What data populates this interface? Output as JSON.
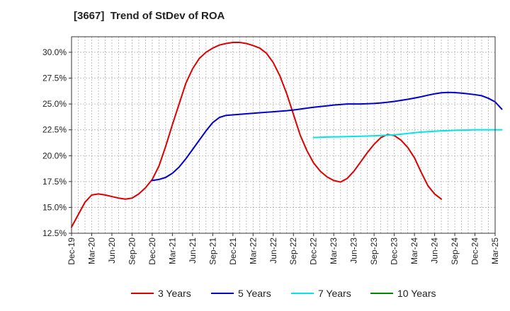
{
  "chart_data": {
    "type": "line",
    "title": "[3667]  Trend of StDev of ROA",
    "xlabel": "",
    "ylabel": "",
    "x_ticks": [
      "Dec-19",
      "Mar-20",
      "Jun-20",
      "Sep-20",
      "Dec-20",
      "Mar-21",
      "Jun-21",
      "Sep-21",
      "Dec-21",
      "Mar-22",
      "Jun-22",
      "Sep-22",
      "Dec-22",
      "Mar-23",
      "Jun-23",
      "Sep-23",
      "Dec-23",
      "Mar-24",
      "Jun-24",
      "Sep-24",
      "Dec-24",
      "Mar-25"
    ],
    "y_ticks": [
      "12.5%",
      "15.0%",
      "17.5%",
      "20.0%",
      "22.5%",
      "25.0%",
      "27.5%",
      "30.0%"
    ],
    "ylim": [
      12.5,
      31.5
    ],
    "grid": true,
    "legend_position": "bottom",
    "series": [
      {
        "name": "3 Years",
        "color": "#dd0000",
        "points": [
          [
            0,
            13.1
          ],
          [
            1,
            14.3
          ],
          [
            2,
            15.5
          ],
          [
            3,
            16.2
          ],
          [
            4,
            16.3
          ],
          [
            5,
            16.2
          ],
          [
            6,
            16.05
          ],
          [
            7,
            15.9
          ],
          [
            8,
            15.8
          ],
          [
            9,
            15.9
          ],
          [
            10,
            16.3
          ],
          [
            11,
            16.9
          ],
          [
            12,
            17.7
          ],
          [
            13,
            19.0
          ],
          [
            14,
            20.9
          ],
          [
            15,
            23.0
          ],
          [
            16,
            25.0
          ],
          [
            17,
            27.0
          ],
          [
            18,
            28.4
          ],
          [
            19,
            29.4
          ],
          [
            20,
            30.0
          ],
          [
            21,
            30.4
          ],
          [
            22,
            30.7
          ],
          [
            23,
            30.85
          ],
          [
            24,
            30.95
          ],
          [
            25,
            30.95
          ],
          [
            26,
            30.85
          ],
          [
            27,
            30.65
          ],
          [
            28,
            30.4
          ],
          [
            29,
            29.9
          ],
          [
            30,
            29.0
          ],
          [
            31,
            27.7
          ],
          [
            32,
            26.0
          ],
          [
            33,
            24.0
          ],
          [
            34,
            22.0
          ],
          [
            35,
            20.5
          ],
          [
            36,
            19.3
          ],
          [
            37,
            18.5
          ],
          [
            38,
            17.95
          ],
          [
            39,
            17.6
          ],
          [
            40,
            17.45
          ],
          [
            41,
            17.8
          ],
          [
            42,
            18.5
          ],
          [
            43,
            19.4
          ],
          [
            44,
            20.3
          ],
          [
            45,
            21.1
          ],
          [
            46,
            21.75
          ],
          [
            47,
            22.05
          ],
          [
            48,
            21.95
          ],
          [
            49,
            21.5
          ],
          [
            50,
            20.8
          ],
          [
            51,
            19.8
          ],
          [
            52,
            18.4
          ],
          [
            53,
            17.1
          ],
          [
            54,
            16.3
          ],
          [
            55,
            15.8
          ]
        ]
      },
      {
        "name": "5 Years",
        "color": "#0000cc",
        "points": [
          [
            12,
            17.6
          ],
          [
            13,
            17.7
          ],
          [
            14,
            17.9
          ],
          [
            15,
            18.3
          ],
          [
            16,
            18.9
          ],
          [
            17,
            19.7
          ],
          [
            18,
            20.6
          ],
          [
            19,
            21.5
          ],
          [
            20,
            22.4
          ],
          [
            21,
            23.2
          ],
          [
            22,
            23.7
          ],
          [
            23,
            23.9
          ],
          [
            24,
            23.95
          ],
          [
            25,
            24.0
          ],
          [
            26,
            24.05
          ],
          [
            27,
            24.1
          ],
          [
            28,
            24.15
          ],
          [
            29,
            24.2
          ],
          [
            30,
            24.25
          ],
          [
            31,
            24.3
          ],
          [
            32,
            24.35
          ],
          [
            33,
            24.42
          ],
          [
            34,
            24.5
          ],
          [
            35,
            24.6
          ],
          [
            36,
            24.68
          ],
          [
            37,
            24.75
          ],
          [
            38,
            24.82
          ],
          [
            39,
            24.9
          ],
          [
            40,
            24.95
          ],
          [
            41,
            25.0
          ],
          [
            42,
            25.0
          ],
          [
            43,
            25.0
          ],
          [
            44,
            25.02
          ],
          [
            45,
            25.05
          ],
          [
            46,
            25.1
          ],
          [
            47,
            25.17
          ],
          [
            48,
            25.25
          ],
          [
            49,
            25.35
          ],
          [
            50,
            25.45
          ],
          [
            51,
            25.57
          ],
          [
            52,
            25.7
          ],
          [
            53,
            25.85
          ],
          [
            54,
            25.98
          ],
          [
            55,
            26.08
          ],
          [
            56,
            26.12
          ],
          [
            57,
            26.1
          ],
          [
            58,
            26.05
          ],
          [
            59,
            25.98
          ],
          [
            60,
            25.9
          ],
          [
            61,
            25.8
          ],
          [
            62,
            25.55
          ],
          [
            63,
            25.2
          ],
          [
            64,
            24.5
          ]
        ]
      },
      {
        "name": "7 Years",
        "color": "#00e5e5",
        "points": [
          [
            36,
            21.75
          ],
          [
            37,
            21.78
          ],
          [
            38,
            21.8
          ],
          [
            39,
            21.82
          ],
          [
            40,
            21.83
          ],
          [
            41,
            21.85
          ],
          [
            42,
            21.86
          ],
          [
            43,
            21.88
          ],
          [
            44,
            21.9
          ],
          [
            45,
            21.92
          ],
          [
            46,
            21.95
          ],
          [
            47,
            21.98
          ],
          [
            48,
            22.02
          ],
          [
            49,
            22.08
          ],
          [
            50,
            22.15
          ],
          [
            51,
            22.22
          ],
          [
            52,
            22.28
          ],
          [
            53,
            22.32
          ],
          [
            54,
            22.36
          ],
          [
            55,
            22.4
          ],
          [
            56,
            22.42
          ],
          [
            57,
            22.45
          ],
          [
            58,
            22.47
          ],
          [
            59,
            22.48
          ],
          [
            60,
            22.5
          ],
          [
            61,
            22.5
          ],
          [
            62,
            22.5
          ],
          [
            63,
            22.5
          ],
          [
            64,
            22.5
          ]
        ]
      },
      {
        "name": "10 Years",
        "color": "#008800",
        "points": []
      }
    ]
  }
}
